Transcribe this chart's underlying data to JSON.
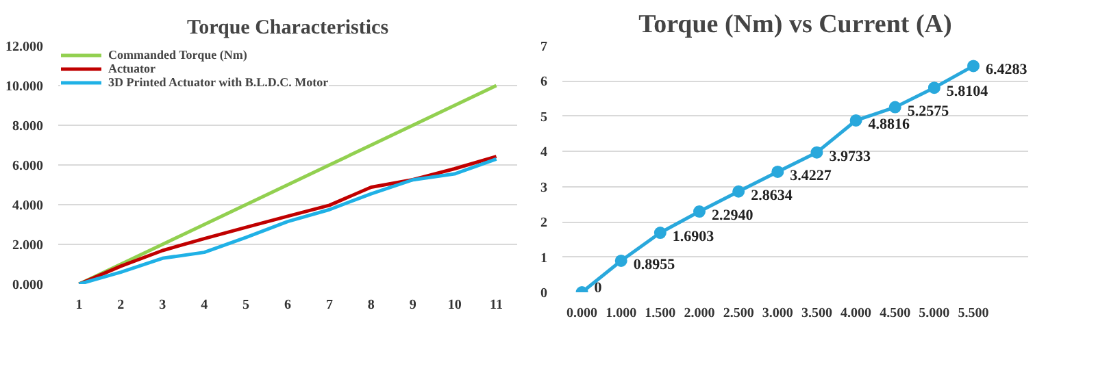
{
  "chart_data": [
    {
      "type": "line",
      "title": "Torque Characteristics",
      "categories": [
        "1",
        "2",
        "3",
        "4",
        "5",
        "6",
        "7",
        "8",
        "9",
        "10",
        "11"
      ],
      "series": [
        {
          "name": "Commanded Torque (Nm)",
          "color": "#92d050",
          "values": [
            0,
            1,
            2,
            3,
            4,
            5,
            6,
            7,
            8,
            9,
            10
          ]
        },
        {
          "name": "Actuator",
          "color": "#c00000",
          "values": [
            0,
            0.9,
            1.69,
            2.29,
            2.86,
            3.42,
            3.97,
            4.88,
            5.26,
            5.81,
            6.43
          ]
        },
        {
          "name": "3D Printed Actuator with B.L.D.C. Motor",
          "color": "#1fb1e6",
          "values": [
            0,
            0.6,
            1.3,
            1.6,
            2.35,
            3.15,
            3.75,
            4.55,
            5.25,
            5.55,
            6.3
          ]
        }
      ],
      "ylim": [
        0,
        12
      ],
      "yticks": [
        {
          "value": 0,
          "label": "0.000"
        },
        {
          "value": 2,
          "label": "2.000"
        },
        {
          "value": 4,
          "label": "4.000"
        },
        {
          "value": 6,
          "label": "6.000"
        },
        {
          "value": 8,
          "label": "8.000"
        },
        {
          "value": 10,
          "label": "10.000"
        },
        {
          "value": 12,
          "label": "12.000"
        }
      ],
      "grid": "y",
      "legend": "top left",
      "marker": "none"
    },
    {
      "type": "line",
      "title": "Torque (Nm) vs Current (A)",
      "categories": [
        "0.000",
        "1.000",
        "1.500",
        "2.000",
        "2.500",
        "3.000",
        "3.500",
        "4.000",
        "4.500",
        "5.000",
        "5.500"
      ],
      "series": [
        {
          "color": "#29a8dc",
          "values": [
            0,
            0.8955,
            1.6903,
            2.294,
            2.8634,
            3.4227,
            3.9733,
            4.8816,
            5.2575,
            5.8104,
            6.4283
          ],
          "value_labels": [
            "0",
            "0.8955",
            "1.6903",
            "2.2940",
            "2.8634",
            "3.4227",
            "3.9733",
            "4.8816",
            "5.2575",
            "5.8104",
            "6.4283"
          ]
        }
      ],
      "ylim": [
        0,
        7
      ],
      "yticks": [
        0,
        1,
        2,
        3,
        4,
        5,
        6,
        7
      ],
      "grid": "y",
      "marker": "circle"
    }
  ]
}
